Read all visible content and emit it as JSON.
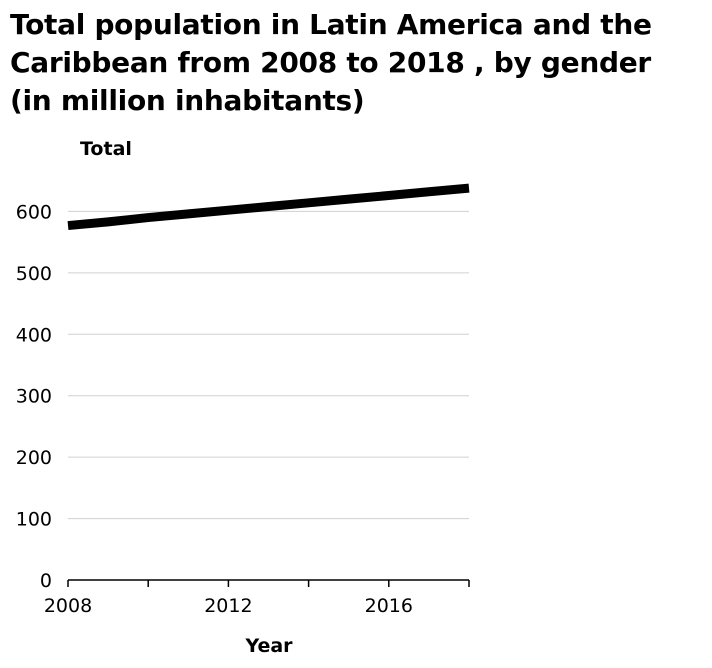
{
  "chart_data": {
    "type": "line",
    "title": "Total population in Latin America and the Caribbean from 2008 to 2018 , by gender (in million inhabitants)",
    "xlabel": "Year",
    "ylabel": "Total",
    "x": [
      2008,
      2009,
      2010,
      2011,
      2012,
      2013,
      2014,
      2015,
      2016,
      2017,
      2018
    ],
    "series": [
      {
        "values": [
          577,
          583,
          590,
          596,
          602,
          608,
          614,
          620,
          626,
          632,
          638
        ]
      }
    ],
    "xlim": [
      2008,
      2018
    ],
    "ylim": [
      0,
      650
    ],
    "yticks": [
      0,
      100,
      200,
      300,
      400,
      500,
      600
    ],
    "xticks_all": [
      2008,
      2010,
      2012,
      2014,
      2016
    ],
    "xtick_labels": [
      "2008",
      "2012",
      "2016"
    ],
    "ytick_labels": [
      "0",
      "100",
      "200",
      "300",
      "400",
      "500",
      "600"
    ],
    "grid": "horizontal",
    "line_color": "#000000",
    "grid_color": "#d0d0d0"
  }
}
